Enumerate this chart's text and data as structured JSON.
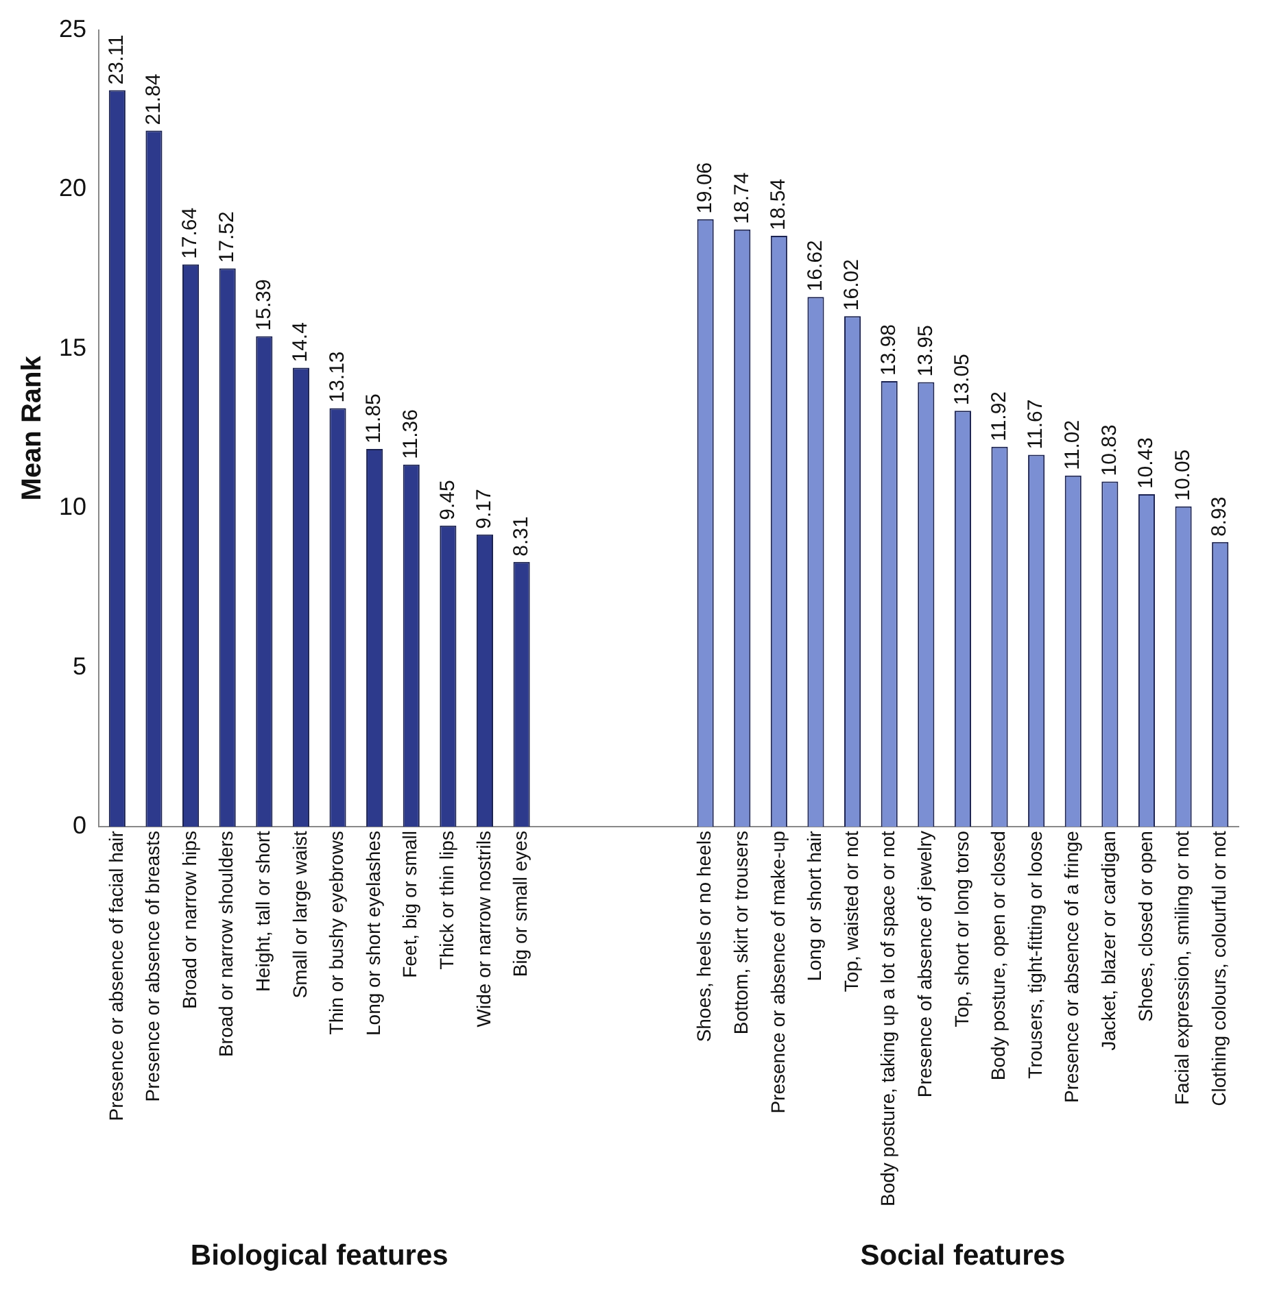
{
  "chart_data": {
    "type": "bar",
    "ylabel": "Mean Rank",
    "categories": [
      "Presence or absence of facial hair",
      "Presence or absence of breasts",
      "Broad or narrow hips",
      "Broad or narrow shoulders",
      "Height, tall or short",
      "Small or large waist",
      "Thin or bushy eyebrows",
      "Long or short eyelashes",
      "Feet, big or small",
      "Thick or thin lips",
      "Wide or narrow nostrils",
      "Big or small eyes",
      null,
      null,
      null,
      null,
      "Shoes, heels or no heels",
      "Bottom, skirt or trousers",
      "Presence or absence of make-up",
      "Long or short hair",
      "Top, waisted or not",
      "Body posture, taking up a lot of space or not",
      "Presence of absence of jewelry",
      "Top, short or long torso",
      "Body posture, open or closed",
      "Trousers, tight-fitting or loose",
      "Presence or absence of a fringe",
      "Jacket, blazer or cardigan",
      "Shoes, closed or open",
      "Facial expression, smiling or not",
      "Clothing colours, colourful or not"
    ],
    "values": [
      23.11,
      21.84,
      17.64,
      17.52,
      15.39,
      14.4,
      13.13,
      11.85,
      11.36,
      9.45,
      9.17,
      8.31,
      null,
      null,
      null,
      null,
      19.06,
      18.74,
      18.54,
      16.62,
      16.02,
      13.98,
      13.95,
      13.05,
      11.92,
      11.67,
      11.02,
      10.83,
      10.43,
      10.05,
      8.93
    ],
    "colors": [
      "#2d3a8c",
      "#2d3a8c",
      "#2d3a8c",
      "#2d3a8c",
      "#2d3a8c",
      "#2d3a8c",
      "#2d3a8c",
      "#2d3a8c",
      "#2d3a8c",
      "#2d3a8c",
      "#2d3a8c",
      "#2d3a8c",
      null,
      null,
      null,
      null,
      "#7b8fd3",
      "#7b8fd3",
      "#7b8fd3",
      "#7b8fd3",
      "#7b8fd3",
      "#7b8fd3",
      "#7b8fd3",
      "#7b8fd3",
      "#7b8fd3",
      "#7b8fd3",
      "#7b8fd3",
      "#7b8fd3",
      "#7b8fd3",
      "#7b8fd3",
      "#7b8fd3"
    ],
    "ylim": [
      0,
      25
    ],
    "yticks": [
      0,
      5,
      10,
      15,
      20,
      25
    ],
    "grid": false,
    "legend": false,
    "data_labels": true,
    "annotations": [
      "Biological features",
      "Social features"
    ]
  }
}
